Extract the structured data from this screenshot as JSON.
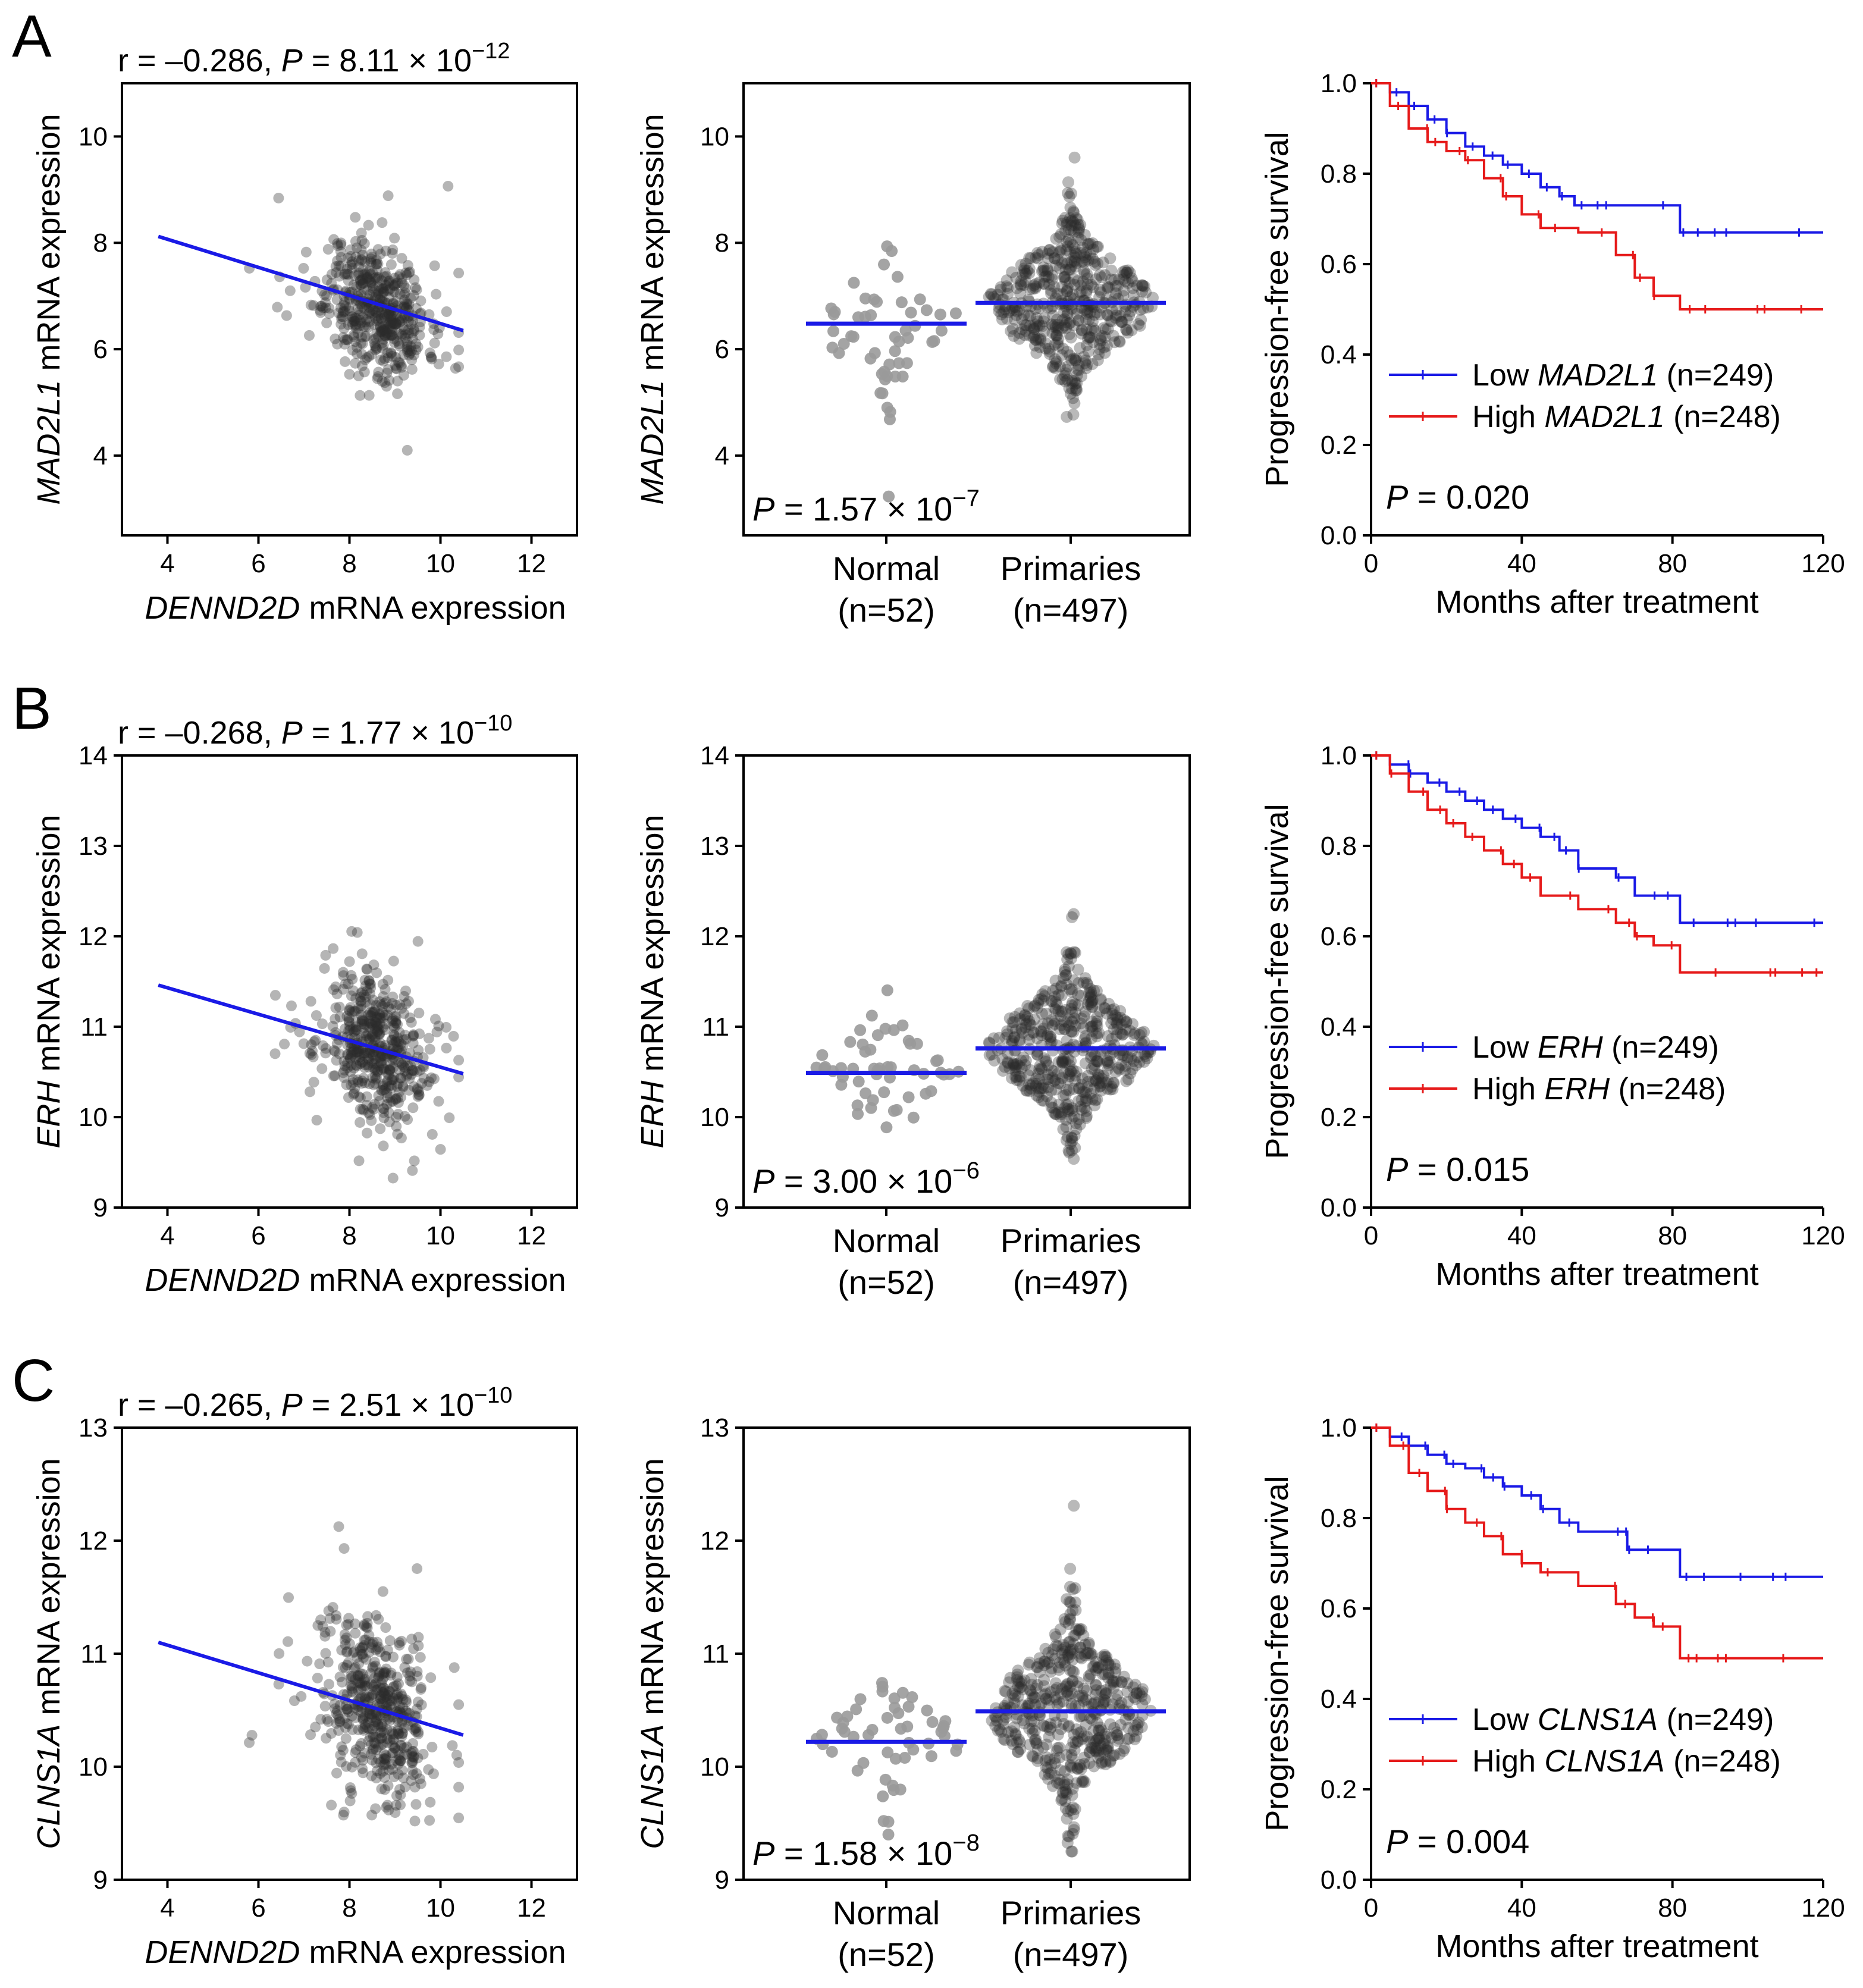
{
  "colors": {
    "blue": "#1a1ae6",
    "red": "#e61a1a",
    "point": "#2a2a2a",
    "normal_point": "#9a9a9a",
    "axis": "#000000"
  },
  "rows": [
    {
      "panel": "A",
      "gene": "MAD2L1",
      "scatter": {
        "corr_prefix": "r = –0.286, ",
        "p_label": "P",
        "p_value": " = 8.11 × 10",
        "p_exp": "−12",
        "ylabel_gene": "MAD2L1",
        "ylabel_rest": " mRNA expression",
        "xlabel_gene": "DENND2D",
        "xlabel_rest": " mRNA expression",
        "xlim": [
          3,
          13
        ],
        "ylim": [
          2.5,
          11
        ],
        "xticks": [
          "4",
          "6",
          "8",
          "10",
          "12"
        ],
        "xtickvals": [
          4,
          6,
          8,
          10,
          12
        ],
        "yticks": [
          "4",
          "6",
          "8",
          "10"
        ],
        "ytickvals": [
          4,
          6,
          8,
          10
        ],
        "fit": {
          "x1": 3.8,
          "y1": 8.12,
          "x2": 10.5,
          "y2": 6.35
        },
        "cloud": {
          "cx": 8.6,
          "sx": 0.55,
          "cy": 6.8,
          "sy": 0.62,
          "n": 497,
          "seed": 11,
          "corr": -0.286
        }
      },
      "dot": {
        "ylabel_gene": "MAD2L1",
        "ylabel_rest": " mRNA expression",
        "ylim": [
          2.5,
          11
        ],
        "yticks": [
          "4",
          "6",
          "8",
          "10"
        ],
        "ytickvals": [
          4,
          6,
          8,
          10
        ],
        "categories": [
          {
            "name": "Normal",
            "n": "(n=52)"
          },
          {
            "name": "Primaries",
            "n": "(n=497)"
          }
        ],
        "medians": [
          6.48,
          6.87
        ],
        "groups": [
          {
            "n": 52,
            "mean": 6.48,
            "sd": 0.62,
            "seed": 3
          },
          {
            "n": 497,
            "mean": 6.87,
            "sd": 0.72,
            "seed": 5
          }
        ],
        "p_label": "P",
        "p_value": " = 1.57 × 10",
        "p_exp": "−7"
      },
      "km": {
        "ylabel": "Progression-free survival",
        "xlabel": "Months after treatment",
        "xlim": [
          0,
          120
        ],
        "ylim": [
          0,
          1.0
        ],
        "xticks": [
          "0",
          "40",
          "80",
          "120"
        ],
        "xtickvals": [
          0,
          40,
          80,
          120
        ],
        "yticks": [
          "0.0",
          "0.2",
          "0.4",
          "0.6",
          "0.8",
          "1.0"
        ],
        "ytickvals": [
          0,
          0.2,
          0.4,
          0.6,
          0.8,
          1.0
        ],
        "legend": [
          {
            "prefix": "Low ",
            "gene": "MAD2L1",
            "suffix": " (n=249)"
          },
          {
            "prefix": "High ",
            "gene": "MAD2L1",
            "suffix": " (n=248)"
          }
        ],
        "p_label": "P",
        "p_value": " = 0.020",
        "series": [
          {
            "name": "Low MAD2L1",
            "points": [
              [
                0,
                1.0
              ],
              [
                5,
                0.98
              ],
              [
                10,
                0.95
              ],
              [
                15,
                0.92
              ],
              [
                20,
                0.89
              ],
              [
                25,
                0.86
              ],
              [
                30,
                0.84
              ],
              [
                35,
                0.82
              ],
              [
                40,
                0.8
              ],
              [
                45,
                0.77
              ],
              [
                50,
                0.75
              ],
              [
                54,
                0.73
              ],
              [
                82,
                0.67
              ],
              [
                120,
                0.67
              ]
            ]
          },
          {
            "name": "High MAD2L1",
            "points": [
              [
                0,
                1.0
              ],
              [
                5,
                0.95
              ],
              [
                10,
                0.9
              ],
              [
                15,
                0.87
              ],
              [
                20,
                0.85
              ],
              [
                25,
                0.83
              ],
              [
                30,
                0.79
              ],
              [
                35,
                0.75
              ],
              [
                40,
                0.71
              ],
              [
                45,
                0.68
              ],
              [
                55,
                0.67
              ],
              [
                65,
                0.62
              ],
              [
                70,
                0.57
              ],
              [
                75,
                0.53
              ],
              [
                82,
                0.5
              ],
              [
                120,
                0.5
              ]
            ]
          }
        ]
      }
    },
    {
      "panel": "B",
      "gene": "ERH",
      "scatter": {
        "corr_prefix": "r = –0.268, ",
        "p_label": "P",
        "p_value": " = 1.77 × 10",
        "p_exp": "−10",
        "ylabel_gene": "ERH",
        "ylabel_rest": " mRNA expression",
        "xlabel_gene": "DENND2D",
        "xlabel_rest": " mRNA expression",
        "xlim": [
          3,
          13
        ],
        "ylim": [
          9,
          14
        ],
        "xticks": [
          "4",
          "6",
          "8",
          "10",
          "12"
        ],
        "xtickvals": [
          4,
          6,
          8,
          10,
          12
        ],
        "yticks": [
          "9",
          "10",
          "11",
          "12",
          "13",
          "14"
        ],
        "ytickvals": [
          9,
          10,
          11,
          12,
          13,
          14
        ],
        "fit": {
          "x1": 3.8,
          "y1": 11.46,
          "x2": 10.5,
          "y2": 10.48
        },
        "cloud": {
          "cx": 8.6,
          "sx": 0.55,
          "cy": 10.75,
          "sy": 0.4,
          "n": 497,
          "seed": 21,
          "corr": -0.268
        }
      },
      "dot": {
        "ylabel_gene": "ERH",
        "ylabel_rest": " mRNA expression",
        "ylim": [
          9,
          14
        ],
        "yticks": [
          "9",
          "10",
          "11",
          "12",
          "13",
          "14"
        ],
        "ytickvals": [
          9,
          10,
          11,
          12,
          13,
          14
        ],
        "categories": [
          {
            "name": "Normal",
            "n": "(n=52)"
          },
          {
            "name": "Primaries",
            "n": "(n=497)"
          }
        ],
        "medians": [
          10.49,
          10.76
        ],
        "groups": [
          {
            "n": 52,
            "mean": 10.49,
            "sd": 0.35,
            "seed": 7
          },
          {
            "n": 497,
            "mean": 10.76,
            "sd": 0.42,
            "seed": 9
          }
        ],
        "p_label": "P",
        "p_value": " = 3.00 × 10",
        "p_exp": "−6"
      },
      "km": {
        "ylabel": "Progression-free survival",
        "xlabel": "Months after treatment",
        "xlim": [
          0,
          120
        ],
        "ylim": [
          0,
          1.0
        ],
        "xticks": [
          "0",
          "40",
          "80",
          "120"
        ],
        "xtickvals": [
          0,
          40,
          80,
          120
        ],
        "yticks": [
          "0.0",
          "0.2",
          "0.4",
          "0.6",
          "0.8",
          "1.0"
        ],
        "ytickvals": [
          0,
          0.2,
          0.4,
          0.6,
          0.8,
          1.0
        ],
        "legend": [
          {
            "prefix": "Low ",
            "gene": "ERH",
            "suffix": " (n=249)"
          },
          {
            "prefix": "High ",
            "gene": "ERH",
            "suffix": " (n=248)"
          }
        ],
        "p_label": "P",
        "p_value": " = 0.015",
        "series": [
          {
            "name": "Low ERH",
            "points": [
              [
                0,
                1.0
              ],
              [
                5,
                0.98
              ],
              [
                10,
                0.96
              ],
              [
                15,
                0.94
              ],
              [
                20,
                0.92
              ],
              [
                25,
                0.9
              ],
              [
                30,
                0.88
              ],
              [
                35,
                0.86
              ],
              [
                40,
                0.84
              ],
              [
                45,
                0.82
              ],
              [
                50,
                0.79
              ],
              [
                55,
                0.75
              ],
              [
                65,
                0.73
              ],
              [
                70,
                0.69
              ],
              [
                82,
                0.63
              ],
              [
                120,
                0.63
              ]
            ]
          },
          {
            "name": "High ERH",
            "points": [
              [
                0,
                1.0
              ],
              [
                5,
                0.96
              ],
              [
                10,
                0.92
              ],
              [
                15,
                0.88
              ],
              [
                20,
                0.85
              ],
              [
                25,
                0.82
              ],
              [
                30,
                0.79
              ],
              [
                35,
                0.76
              ],
              [
                40,
                0.73
              ],
              [
                45,
                0.69
              ],
              [
                55,
                0.66
              ],
              [
                65,
                0.63
              ],
              [
                70,
                0.6
              ],
              [
                75,
                0.58
              ],
              [
                82,
                0.52
              ],
              [
                120,
                0.52
              ]
            ]
          }
        ]
      }
    },
    {
      "panel": "C",
      "gene": "CLNS1A",
      "scatter": {
        "corr_prefix": "r = –0.265, ",
        "p_label": "P",
        "p_value": " = 2.51 × 10",
        "p_exp": "−10",
        "ylabel_gene": "CLNS1A",
        "ylabel_rest": " mRNA expression",
        "xlabel_gene": "DENND2D",
        "xlabel_rest": " mRNA expression",
        "xlim": [
          3,
          13
        ],
        "ylim": [
          9,
          13
        ],
        "xticks": [
          "4",
          "6",
          "8",
          "10",
          "12"
        ],
        "xtickvals": [
          4,
          6,
          8,
          10,
          12
        ],
        "yticks": [
          "9",
          "10",
          "11",
          "12",
          "13"
        ],
        "ytickvals": [
          9,
          10,
          11,
          12,
          13
        ],
        "fit": {
          "x1": 3.8,
          "y1": 11.1,
          "x2": 10.5,
          "y2": 10.28
        },
        "cloud": {
          "cx": 8.6,
          "sx": 0.55,
          "cy": 10.5,
          "sy": 0.38,
          "n": 497,
          "seed": 31,
          "corr": -0.265
        }
      },
      "dot": {
        "ylabel_gene": "CLNS1A",
        "ylabel_rest": " mRNA expression",
        "ylim": [
          9,
          13
        ],
        "yticks": [
          "9",
          "10",
          "11",
          "12",
          "13"
        ],
        "ytickvals": [
          9,
          10,
          11,
          12,
          13
        ],
        "categories": [
          {
            "name": "Normal",
            "n": "(n=52)"
          },
          {
            "name": "Primaries",
            "n": "(n=497)"
          }
        ],
        "medians": [
          10.22,
          10.49
        ],
        "groups": [
          {
            "n": 52,
            "mean": 10.22,
            "sd": 0.28,
            "seed": 13
          },
          {
            "n": 497,
            "mean": 10.49,
            "sd": 0.38,
            "seed": 17
          }
        ],
        "p_label": "P",
        "p_value": " = 1.58 × 10",
        "p_exp": "−8"
      },
      "km": {
        "ylabel": "Progression-free survival",
        "xlabel": "Months after treatment",
        "xlim": [
          0,
          120
        ],
        "ylim": [
          0,
          1.0
        ],
        "xticks": [
          "0",
          "40",
          "80",
          "120"
        ],
        "xtickvals": [
          0,
          40,
          80,
          120
        ],
        "yticks": [
          "0.0",
          "0.2",
          "0.4",
          "0.6",
          "0.8",
          "1.0"
        ],
        "ytickvals": [
          0,
          0.2,
          0.4,
          0.6,
          0.8,
          1.0
        ],
        "legend": [
          {
            "prefix": "Low ",
            "gene": "CLNS1A",
            "suffix": " (n=249)"
          },
          {
            "prefix": "High ",
            "gene": "CLNS1A",
            "suffix": " (n=248)"
          }
        ],
        "p_label": "P",
        "p_value": " = 0.004",
        "series": [
          {
            "name": "Low CLNS1A",
            "points": [
              [
                0,
                1.0
              ],
              [
                5,
                0.98
              ],
              [
                10,
                0.96
              ],
              [
                15,
                0.94
              ],
              [
                20,
                0.92
              ],
              [
                25,
                0.91
              ],
              [
                30,
                0.89
              ],
              [
                35,
                0.87
              ],
              [
                40,
                0.85
              ],
              [
                45,
                0.82
              ],
              [
                50,
                0.79
              ],
              [
                55,
                0.77
              ],
              [
                68,
                0.73
              ],
              [
                82,
                0.67
              ],
              [
                120,
                0.67
              ]
            ]
          },
          {
            "name": "High CLNS1A",
            "points": [
              [
                0,
                1.0
              ],
              [
                5,
                0.96
              ],
              [
                10,
                0.9
              ],
              [
                15,
                0.86
              ],
              [
                20,
                0.82
              ],
              [
                25,
                0.79
              ],
              [
                30,
                0.76
              ],
              [
                35,
                0.72
              ],
              [
                40,
                0.7
              ],
              [
                45,
                0.68
              ],
              [
                55,
                0.65
              ],
              [
                65,
                0.61
              ],
              [
                70,
                0.58
              ],
              [
                75,
                0.56
              ],
              [
                82,
                0.49
              ],
              [
                120,
                0.49
              ]
            ]
          }
        ]
      }
    }
  ]
}
